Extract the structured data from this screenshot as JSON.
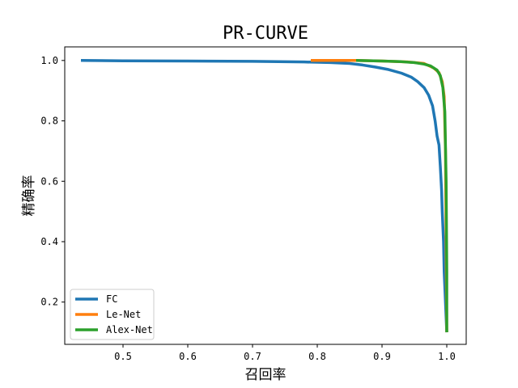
{
  "chart_data": {
    "type": "line",
    "title": "PR-CURVE",
    "xlabel": "召回率",
    "ylabel": "精确率",
    "xlim": [
      0.41,
      1.03
    ],
    "ylim": [
      0.06,
      1.045
    ],
    "xticks": [
      "0.5",
      "0.6",
      "0.7",
      "0.8",
      "0.9",
      "1.0"
    ],
    "yticks": [
      "0.2",
      "0.4",
      "0.6",
      "0.8",
      "1.0"
    ],
    "grid": false,
    "legend_position": "lower-left",
    "series": [
      {
        "name": "FC",
        "color": "#1f77b4",
        "x": [
          0.435,
          0.5,
          0.6,
          0.7,
          0.78,
          0.82,
          0.85,
          0.87,
          0.89,
          0.91,
          0.93,
          0.945,
          0.955,
          0.965,
          0.972,
          0.978,
          0.982,
          0.985,
          0.988,
          0.99,
          0.992,
          0.993,
          0.995,
          0.996,
          0.998,
          1.0
        ],
        "y": [
          1.0,
          0.999,
          0.998,
          0.997,
          0.995,
          0.993,
          0.99,
          0.985,
          0.978,
          0.97,
          0.958,
          0.945,
          0.93,
          0.91,
          0.885,
          0.85,
          0.8,
          0.75,
          0.72,
          0.65,
          0.57,
          0.5,
          0.4,
          0.3,
          0.2,
          0.1
        ]
      },
      {
        "name": "Le-Net",
        "color": "#ff7f0e",
        "x": [
          0.79,
          0.86,
          0.9,
          0.94,
          0.965,
          0.98,
          0.988,
          0.993,
          0.996,
          0.998,
          0.999,
          1.0
        ],
        "y": [
          1.0,
          1.0,
          0.998,
          0.995,
          0.99,
          0.975,
          0.96,
          0.93,
          0.88,
          0.7,
          0.4,
          0.1
        ]
      },
      {
        "name": "Alex-Net",
        "color": "#2ca02c",
        "x": [
          0.86,
          0.9,
          0.93,
          0.95,
          0.965,
          0.975,
          0.985,
          0.99,
          0.994,
          0.997,
          0.999,
          1.0,
          1.0
        ],
        "y": [
          1.0,
          0.998,
          0.996,
          0.993,
          0.988,
          0.982,
          0.968,
          0.95,
          0.91,
          0.83,
          0.6,
          0.3,
          0.1
        ]
      }
    ]
  }
}
